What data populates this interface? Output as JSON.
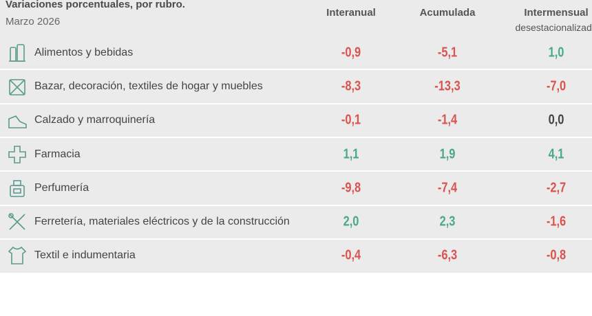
{
  "header": {
    "title": "Variaciones porcentuales, por rubro.",
    "subtitle": "Marzo 2026"
  },
  "table": {
    "columns": [
      {
        "title": "Interanual"
      },
      {
        "title": "Acumulada"
      },
      {
        "title": "Intermensual",
        "subtitle": "desestacionalizada"
      }
    ],
    "rows": [
      {
        "label": "Alimentos y bebidas",
        "values": [
          "-0,9",
          "-5,1",
          "1,0"
        ]
      },
      {
        "label": "Bazar, decoración, textiles de hogar y muebles",
        "values": [
          "-8,3",
          "-13,3",
          "-7,0"
        ]
      },
      {
        "label": "Calzado y marroquinería",
        "values": [
          "-0,1",
          "-1,4",
          "0,0"
        ]
      },
      {
        "label": "Farmacia",
        "values": [
          "1,1",
          "1,9",
          "4,1"
        ]
      },
      {
        "label": "Perfumería",
        "values": [
          "-9,8",
          "-7,4",
          "-2,7"
        ]
      },
      {
        "label": "Ferretería, materiales eléctricos y de la construcción",
        "values": [
          "2,0",
          "2,3",
          "-1,6"
        ]
      },
      {
        "label": "Textil e indumentaria",
        "values": [
          "-0,4",
          "-6,3",
          "-0,8"
        ]
      }
    ],
    "colors": {
      "negative": "#d9534f",
      "positive": "#4aa88a",
      "zero": "#444444"
    }
  }
}
